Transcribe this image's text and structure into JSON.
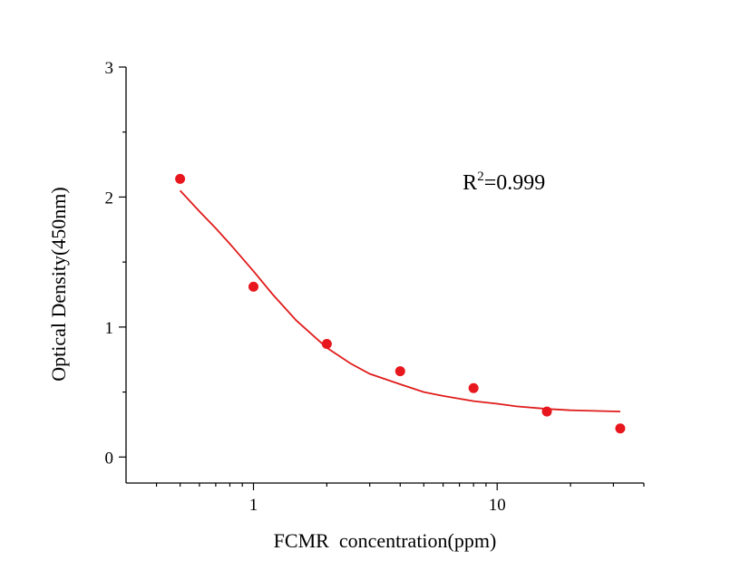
{
  "chart_data": {
    "type": "scatter",
    "xlabel": "FCMR  concentration(ppm)",
    "ylabel": "Optical Density(450nm)",
    "x_scale": "log",
    "xlim": [
      0.3,
      40
    ],
    "ylim": [
      -0.2,
      3
    ],
    "y_ticks": [
      {
        "value": 0,
        "label": "0"
      },
      {
        "value": 1,
        "label": "1"
      },
      {
        "value": 2,
        "label": "2"
      },
      {
        "value": 3,
        "label": "3"
      }
    ],
    "x_ticks": [
      {
        "value": 1,
        "label": "1"
      },
      {
        "value": 10,
        "label": "10"
      }
    ],
    "series": [
      {
        "kind": "points",
        "color": "#e8171e",
        "x": [
          0.5,
          1,
          2,
          4,
          8,
          16,
          32
        ],
        "y": [
          2.14,
          1.31,
          0.87,
          0.66,
          0.53,
          0.35,
          0.22
        ]
      },
      {
        "kind": "fit-curve",
        "color": "#e01b1b",
        "x": [
          0.5,
          0.6,
          0.7,
          0.8,
          1.0,
          1.2,
          1.5,
          2.0,
          2.5,
          3.0,
          4.0,
          5.0,
          6.0,
          8.0,
          10.0,
          12.0,
          16.0,
          20.0,
          25.0,
          32.0
        ],
        "y": [
          2.05,
          1.89,
          1.76,
          1.64,
          1.43,
          1.25,
          1.05,
          0.84,
          0.72,
          0.64,
          0.56,
          0.5,
          0.47,
          0.43,
          0.41,
          0.39,
          0.37,
          0.36,
          0.355,
          0.35
        ]
      }
    ],
    "annotation": {
      "base": "R",
      "sup": "2",
      "rest": "=0.999",
      "x": 8,
      "y": 2.2
    }
  }
}
